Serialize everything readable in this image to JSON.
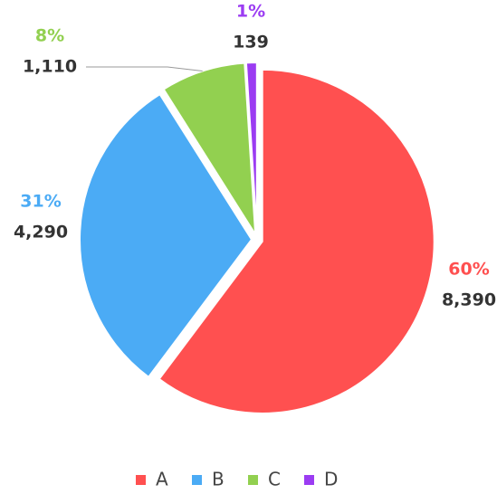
{
  "chart_data": {
    "type": "pie",
    "categories": [
      "A",
      "B",
      "C",
      "D"
    ],
    "values": [
      8390,
      4290,
      1110,
      139
    ],
    "value_labels": [
      "8,390",
      "4,290",
      "1,110",
      "139"
    ],
    "percent_labels": [
      "60%",
      "31%",
      "8%",
      "1%"
    ],
    "colors": [
      "#ff5050",
      "#4babf5",
      "#92d050",
      "#9b3cf2"
    ],
    "legend": "bottom"
  }
}
